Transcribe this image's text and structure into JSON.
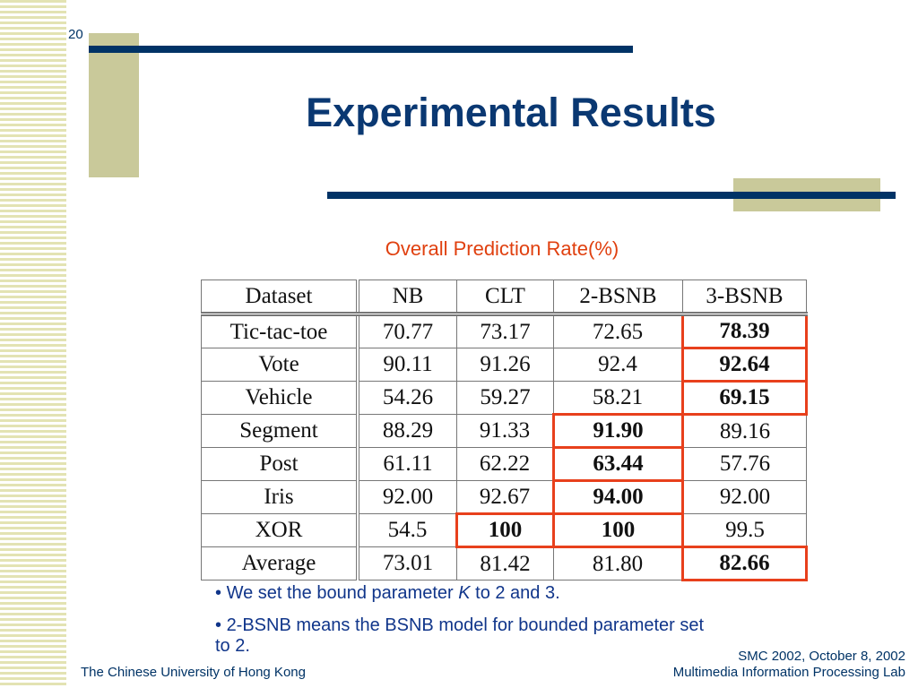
{
  "slide": {
    "number": "20",
    "title": "Experimental Results",
    "subtitle": "Overall Prediction Rate(%)"
  },
  "table": {
    "headers": [
      "Dataset",
      "NB",
      "CLT",
      "2-BSNB",
      "3-BSNB"
    ],
    "rows": [
      {
        "dataset": "Tic-tac-toe",
        "nb": "70.77",
        "clt": "73.17",
        "bsnb2": "72.65",
        "bsnb3": "78.39",
        "best": "bsnb3"
      },
      {
        "dataset": "Vote",
        "nb": "90.11",
        "clt": "91.26",
        "bsnb2": "92.4",
        "bsnb3": "92.64",
        "best": "bsnb3"
      },
      {
        "dataset": "Vehicle",
        "nb": "54.26",
        "clt": "59.27",
        "bsnb2": "58.21",
        "bsnb3": "69.15",
        "best": "bsnb3"
      },
      {
        "dataset": "Segment",
        "nb": "88.29",
        "clt": "91.33",
        "bsnb2": "91.90",
        "bsnb3": "89.16",
        "best": "bsnb2"
      },
      {
        "dataset": "Post",
        "nb": "61.11",
        "clt": "62.22",
        "bsnb2": "63.44",
        "bsnb3": "57.76",
        "best": "bsnb2"
      },
      {
        "dataset": "Iris",
        "nb": "92.00",
        "clt": "92.67",
        "bsnb2": "94.00",
        "bsnb3": "92.00",
        "best": "bsnb2"
      },
      {
        "dataset": "XOR",
        "nb": "54.5",
        "clt": "100",
        "bsnb2": "100",
        "bsnb3": "99.5",
        "best": "clt,bsnb2"
      },
      {
        "dataset": "Average",
        "nb": "73.01",
        "clt": "81.42",
        "bsnb2": "81.80",
        "bsnb3": "82.66",
        "best": "bsnb3"
      }
    ],
    "highlight_color": "#e8401c"
  },
  "bullets": {
    "b1_before": "We set the bound parameter ",
    "b1_italic": "K",
    "b1_after": " to 2 and 3.",
    "b2": "2-BSNB means the BSNB model for bounded parameter set to 2."
  },
  "footer": {
    "left": "The Chinese University of Hong Kong",
    "right_line1": "SMC 2002, October 8, 2002",
    "right_line2": "Multimedia Information Processing Lab"
  },
  "colors": {
    "title": "#0a3872",
    "subtitle": "#e0400f",
    "accent_bar": "#003366",
    "accent_block": "#c9c99a"
  }
}
